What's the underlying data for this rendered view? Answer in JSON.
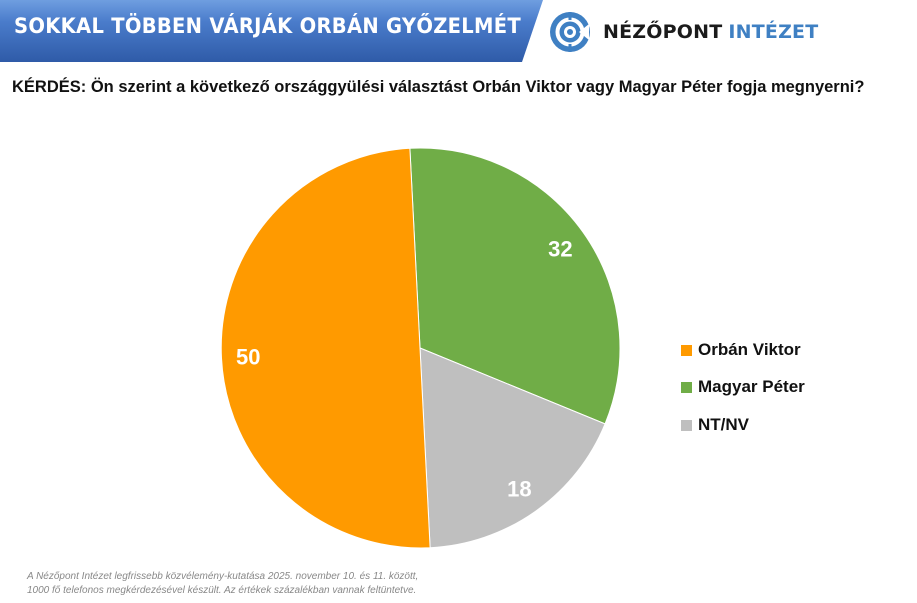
{
  "header": {
    "title": "SOKKAL TÖBBEN VÁRJÁK ORBÁN GYŐZELMÉT",
    "logo": {
      "icon": "nezopont-logo-icon",
      "name_dark": "NÉZŐPONT",
      "name_blue": "INTÉZET"
    }
  },
  "question": "KÉRDÉS: Ön szerint a következő országgyülési választást Orbán Viktor vagy Magyar Péter fogja megnyerni?",
  "colors": {
    "banner_top": "#6f9ee0",
    "banner_bottom": "#2f5ba8",
    "orban": "#ff9a00",
    "magyar": "#70ad47",
    "ntnv": "#bfbfbf",
    "logo_blue": "#3f80c3"
  },
  "chart_data": {
    "type": "pie",
    "title": "SOKKAL TÖBBEN VÁRJÁK ORBÁN GYŐZELMÉT",
    "subtitle": "KÉRDÉS: Ön szerint a következő országgyülési választást Orbán Viktor vagy Magyar Péter fogja megnyerni?",
    "categories": [
      "Orbán Viktor",
      "Magyar Péter",
      "NT/NV"
    ],
    "values": [
      50,
      32,
      18
    ],
    "unit": "%",
    "colors": [
      "#ff9a00",
      "#70ad47",
      "#bfbfbf"
    ],
    "data_labels": [
      "50",
      "32",
      "18"
    ],
    "legend_position": "right"
  },
  "legend": {
    "items": [
      {
        "label": "Orbán Viktor",
        "color": "#ff9a00"
      },
      {
        "label": "Magyar Péter",
        "color": "#70ad47"
      },
      {
        "label": "NT/NV",
        "color": "#bfbfbf"
      }
    ]
  },
  "footnote": {
    "line1": "A Nézőpont Intézet legfrissebb közvélemény-kutatása 2025. november 10. és 11. között,",
    "line2": "1000 fő telefonos megkérdezésével készült. Az értékek százalékban vannak feltüntetve."
  }
}
